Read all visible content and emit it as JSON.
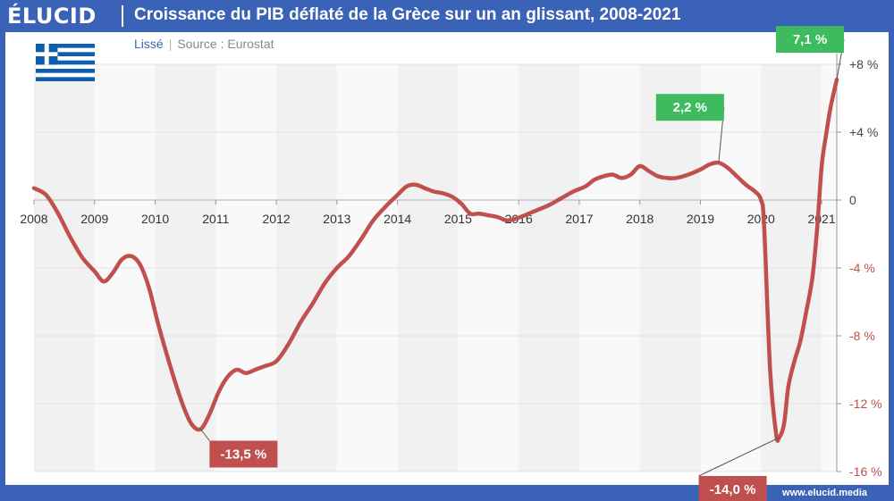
{
  "header": {
    "logo": "ÉLUCID",
    "title": "Croissance du PIB déflaté de la Grèce sur un an glissant, 2008-2021"
  },
  "subtitle": {
    "smoothing": "Lissé",
    "source": "Source : Eurostat"
  },
  "footer": {
    "url": "www.elucid.media"
  },
  "colors": {
    "brand_blue": "#3a63b8",
    "line": "#c0504d",
    "positive_label": "#3dbb5e",
    "negative_label": "#c0504d",
    "band": "#f1f1f1"
  },
  "chart_data": {
    "type": "line",
    "title": "Croissance du PIB déflaté de la Grèce sur un an glissant, 2008-2021",
    "x_tick_labels": [
      "2008",
      "2009",
      "2010",
      "2011",
      "2012",
      "2013",
      "2014",
      "2015",
      "2016",
      "2017",
      "2018",
      "2019",
      "2020",
      "2021"
    ],
    "y_tick_labels": [
      "+8 %",
      "+4 %",
      "0",
      "-4 %",
      "-8 %",
      "-12 %",
      "-16 %"
    ],
    "y_ticks": [
      8,
      4,
      0,
      -4,
      -8,
      -12,
      -16
    ],
    "ylim": [
      -16,
      8
    ],
    "xlim": [
      2008,
      2021.25
    ],
    "grid": true,
    "series": [
      {
        "values": [
          [
            2008.0,
            0.7
          ],
          [
            2008.2,
            0.3
          ],
          [
            2008.4,
            -0.8
          ],
          [
            2008.6,
            -2.2
          ],
          [
            2008.8,
            -3.4
          ],
          [
            2009.0,
            -4.2
          ],
          [
            2009.15,
            -4.8
          ],
          [
            2009.3,
            -4.3
          ],
          [
            2009.45,
            -3.5
          ],
          [
            2009.6,
            -3.3
          ],
          [
            2009.75,
            -3.8
          ],
          [
            2009.9,
            -5.2
          ],
          [
            2010.05,
            -7.3
          ],
          [
            2010.25,
            -9.8
          ],
          [
            2010.45,
            -12.0
          ],
          [
            2010.6,
            -13.2
          ],
          [
            2010.75,
            -13.5
          ],
          [
            2010.9,
            -12.6
          ],
          [
            2011.05,
            -11.3
          ],
          [
            2011.2,
            -10.4
          ],
          [
            2011.35,
            -10.0
          ],
          [
            2011.5,
            -10.2
          ],
          [
            2011.65,
            -10.0
          ],
          [
            2011.8,
            -9.8
          ],
          [
            2012.0,
            -9.5
          ],
          [
            2012.2,
            -8.5
          ],
          [
            2012.4,
            -7.2
          ],
          [
            2012.6,
            -6.1
          ],
          [
            2012.8,
            -4.9
          ],
          [
            2013.0,
            -4.0
          ],
          [
            2013.2,
            -3.3
          ],
          [
            2013.4,
            -2.3
          ],
          [
            2013.6,
            -1.2
          ],
          [
            2013.8,
            -0.4
          ],
          [
            2014.0,
            0.3
          ],
          [
            2014.15,
            0.8
          ],
          [
            2014.3,
            0.9
          ],
          [
            2014.45,
            0.7
          ],
          [
            2014.6,
            0.5
          ],
          [
            2014.75,
            0.4
          ],
          [
            2014.9,
            0.2
          ],
          [
            2015.05,
            -0.2
          ],
          [
            2015.2,
            -0.8
          ],
          [
            2015.35,
            -0.8
          ],
          [
            2015.5,
            -0.9
          ],
          [
            2015.65,
            -1.0
          ],
          [
            2015.8,
            -1.2
          ],
          [
            2015.95,
            -1.1
          ],
          [
            2016.1,
            -0.9
          ],
          [
            2016.3,
            -0.6
          ],
          [
            2016.5,
            -0.3
          ],
          [
            2016.7,
            0.1
          ],
          [
            2016.9,
            0.5
          ],
          [
            2017.1,
            0.8
          ],
          [
            2017.25,
            1.2
          ],
          [
            2017.4,
            1.4
          ],
          [
            2017.55,
            1.5
          ],
          [
            2017.7,
            1.3
          ],
          [
            2017.85,
            1.5
          ],
          [
            2018.0,
            2.0
          ],
          [
            2018.15,
            1.7
          ],
          [
            2018.3,
            1.4
          ],
          [
            2018.45,
            1.3
          ],
          [
            2018.6,
            1.3
          ],
          [
            2018.8,
            1.5
          ],
          [
            2019.0,
            1.8
          ],
          [
            2019.15,
            2.1
          ],
          [
            2019.3,
            2.2
          ],
          [
            2019.45,
            1.9
          ],
          [
            2019.6,
            1.4
          ],
          [
            2019.75,
            0.9
          ],
          [
            2019.9,
            0.5
          ],
          [
            2020.0,
            0.0
          ],
          [
            2020.05,
            -1.5
          ],
          [
            2020.15,
            -10.0
          ],
          [
            2020.25,
            -13.8
          ],
          [
            2020.3,
            -14.0
          ],
          [
            2020.38,
            -13.2
          ],
          [
            2020.45,
            -11.0
          ],
          [
            2020.55,
            -9.5
          ],
          [
            2020.65,
            -8.3
          ],
          [
            2020.75,
            -6.5
          ],
          [
            2020.85,
            -4.5
          ],
          [
            2020.93,
            -1.5
          ],
          [
            2021.0,
            2.0
          ],
          [
            2021.08,
            4.0
          ],
          [
            2021.15,
            5.5
          ],
          [
            2021.25,
            7.1
          ]
        ]
      }
    ],
    "annotations": [
      {
        "text": "-13,5 %",
        "x": 2010.75,
        "y": -13.5,
        "kind": "negative"
      },
      {
        "text": "2,2 %",
        "x": 2019.3,
        "y": 2.2,
        "kind": "positive"
      },
      {
        "text": "-14,0 %",
        "x": 2020.3,
        "y": -14.0,
        "kind": "negative"
      },
      {
        "text": "7,1 %",
        "x": 2021.25,
        "y": 7.1,
        "kind": "positive"
      }
    ]
  }
}
